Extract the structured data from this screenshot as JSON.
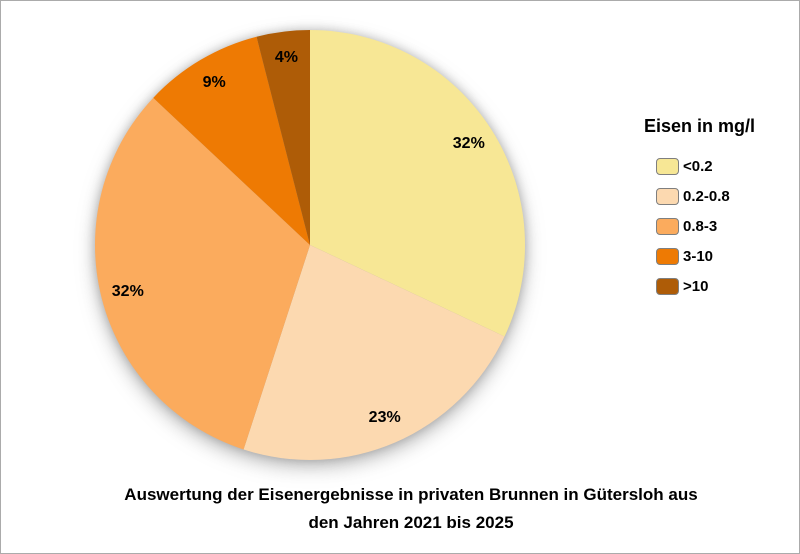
{
  "canvas": {
    "background": "#FFFFFF",
    "border_color": "#ABABAB"
  },
  "chart_data": {
    "type": "pie",
    "title": "Auswertung der Eisenergebnisse in privaten Brunnen in Gütersloh aus den Jahren 2021 bis 2025",
    "title_lines": [
      "Auswertung der Eisenergebnisse in privaten Brunnen in Gütersloh aus",
      "den Jahren 2021 bis 2025"
    ],
    "legend_title": "Eisen in mg/l",
    "legend_position": "right",
    "start_angle_deg": 0,
    "direction": "clockwise",
    "data_labels": "percent-inside",
    "slices": [
      {
        "label": "<0.2",
        "value_pct": 32,
        "data_label": "32%",
        "color": "#F7E795"
      },
      {
        "label": "0.2-0.8",
        "value_pct": 23,
        "data_label": "23%",
        "color": "#FCD9B0"
      },
      {
        "label": "0.8-3",
        "value_pct": 32,
        "data_label": "32%",
        "color": "#FBAB5D"
      },
      {
        "label": "3-10",
        "value_pct": 9,
        "data_label": "9%",
        "color": "#EE7A03"
      },
      {
        "label": ">10",
        "value_pct": 4,
        "data_label": "4%",
        "color": "#AE5C07"
      }
    ],
    "swatch_border_color": "#7F7F7F",
    "label_color": "#000000"
  }
}
